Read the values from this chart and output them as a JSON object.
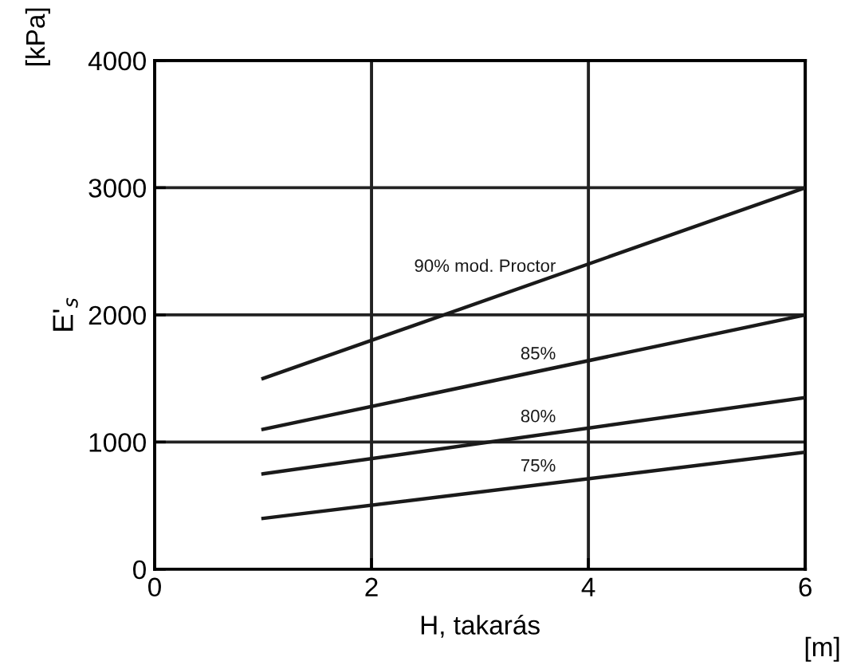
{
  "chart_data": {
    "type": "line",
    "xlabel": "H, takarás",
    "ylabel": "E'$_{s}$",
    "annotations": [
      "[kPa]",
      "[m]"
    ],
    "x": [
      1,
      6
    ],
    "series": [
      {
        "name": "90% mod. Proctor",
        "color": "#1a1a1a",
        "values": [
          1500,
          3000
        ]
      },
      {
        "name": "85%",
        "color": "#1a1a1a",
        "values": [
          1100,
          2000
        ]
      },
      {
        "name": "80%",
        "color": "#1a1a1a",
        "values": [
          750,
          1350
        ]
      },
      {
        "name": "75%",
        "color": "#1a1a1a",
        "values": [
          400,
          920
        ]
      }
    ],
    "xlim": [
      0,
      6
    ],
    "ylim": [
      0,
      4000
    ],
    "xticks": [
      0,
      2,
      4,
      6
    ],
    "yticks": [
      0,
      1000,
      2000,
      3000,
      4000
    ],
    "grid": true,
    "marker": "none",
    "line_style": "solid"
  }
}
